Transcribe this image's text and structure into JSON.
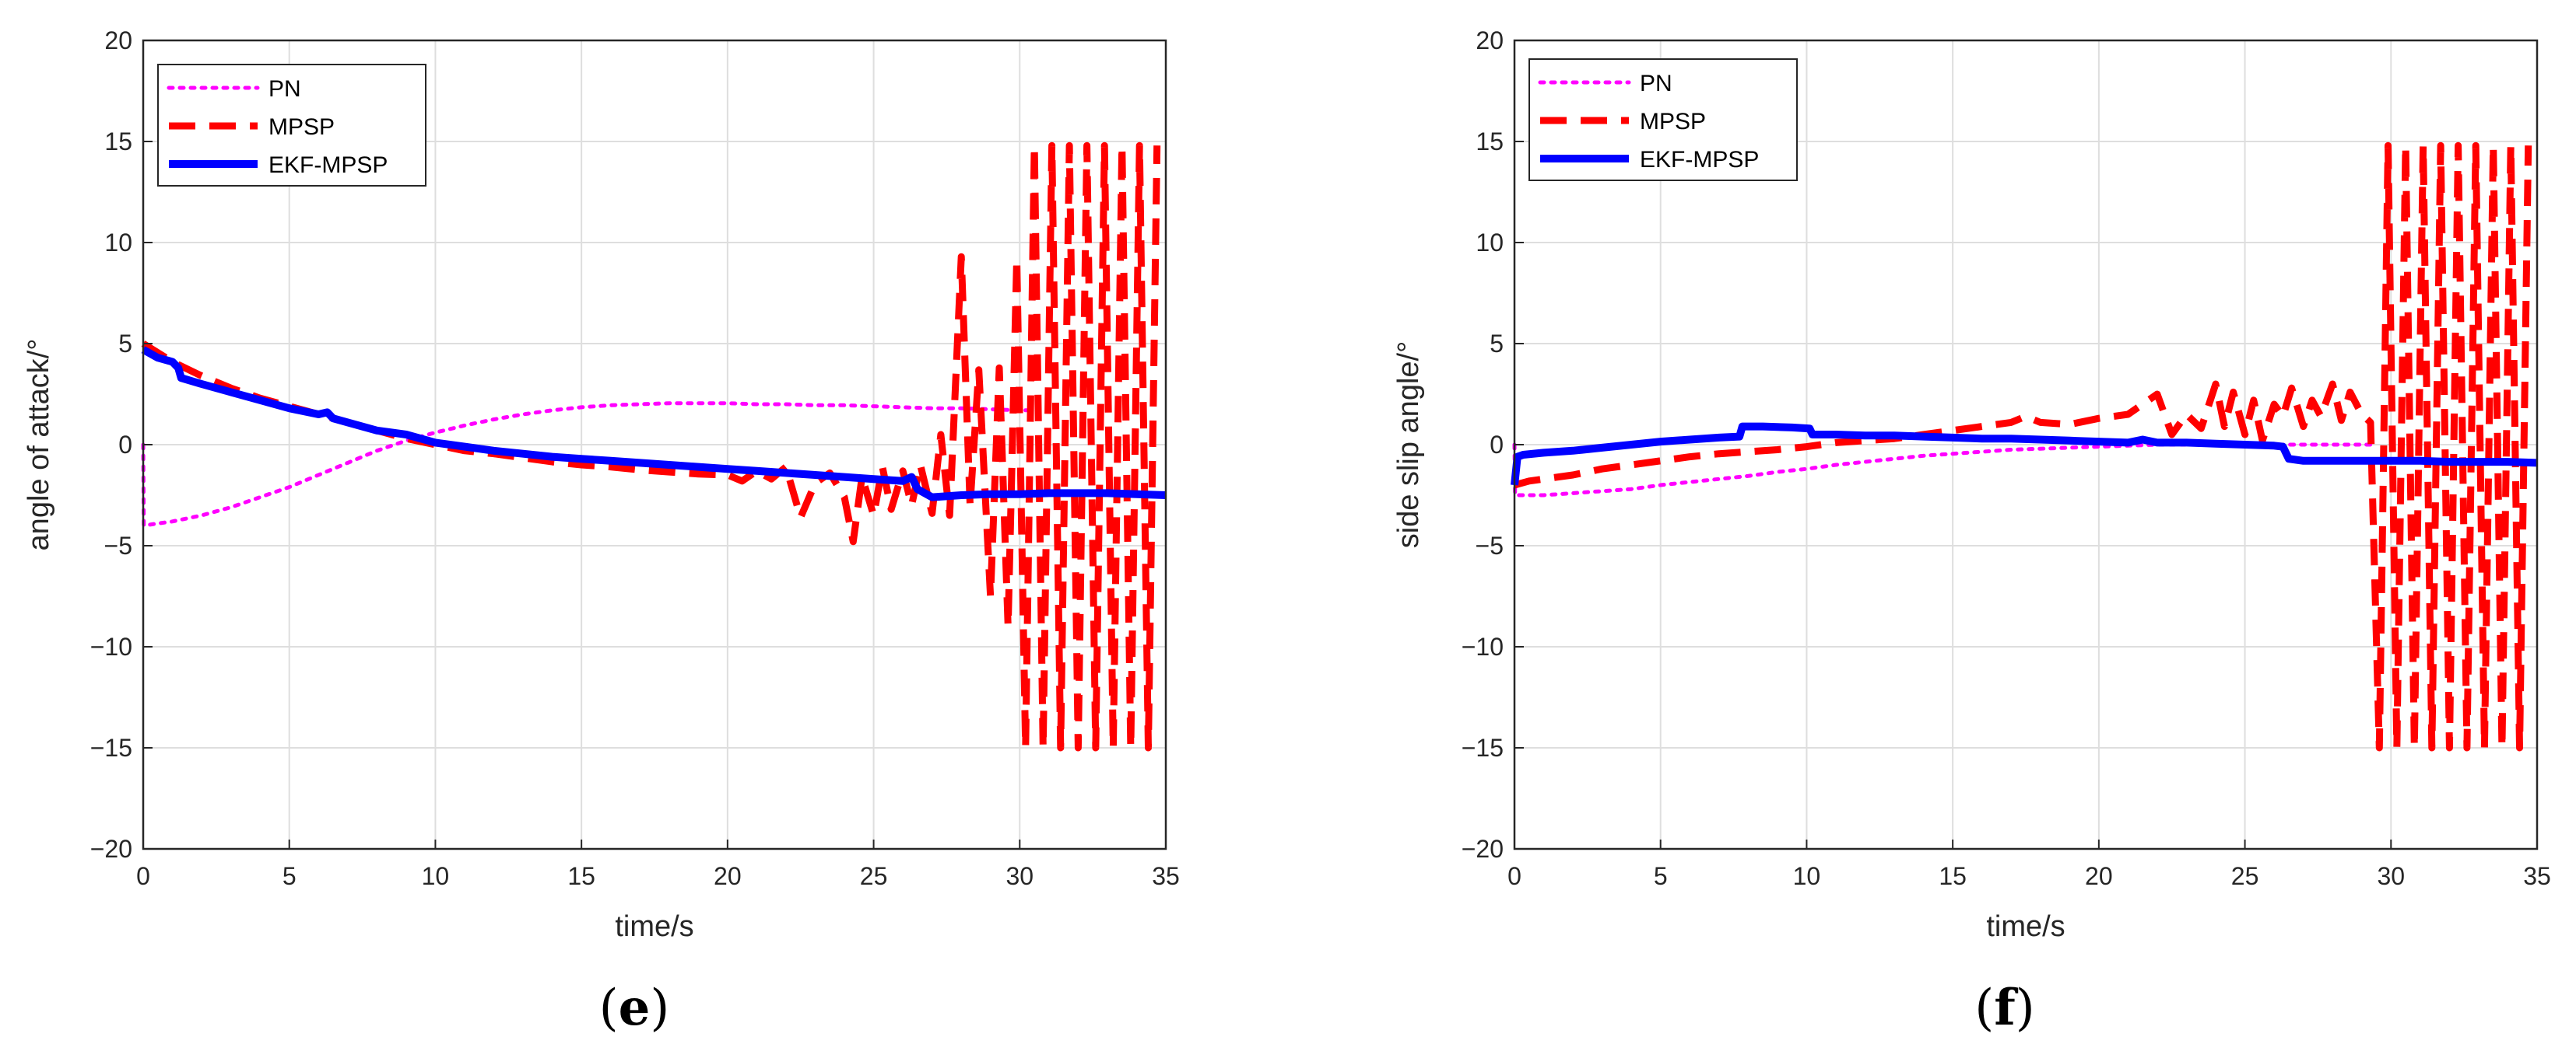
{
  "chart_data": [
    {
      "type": "line",
      "panel_label": "e",
      "xlabel": "time/s",
      "ylabel": "angle of attack/°",
      "xlim": [
        0,
        35
      ],
      "ylim": [
        -20,
        20
      ],
      "xticks": [
        0,
        5,
        10,
        15,
        20,
        25,
        30,
        35
      ],
      "yticks": [
        -20,
        -15,
        -10,
        -5,
        0,
        5,
        10,
        15,
        20
      ],
      "xtick_labels": [
        "0",
        "5",
        "10",
        "15",
        "20",
        "25",
        "30",
        "35"
      ],
      "ytick_labels": [
        "−20",
        "−15",
        "−10",
        "−5",
        "0",
        "5",
        "10",
        "15",
        "20"
      ],
      "grid": true,
      "legend_position": "top-left",
      "series": [
        {
          "name": "PN",
          "color": "#ff00ff",
          "style": "dotted",
          "x": [
            0,
            0.02,
            0.5,
            1,
            2,
            3,
            4,
            5,
            6,
            7,
            8,
            9,
            10,
            11,
            12,
            13,
            14,
            15,
            16,
            17,
            18,
            19,
            20,
            21,
            22,
            23,
            24,
            25,
            26,
            27,
            28,
            29,
            30,
            30.5
          ],
          "y": [
            0,
            -4,
            -3.9,
            -3.8,
            -3.5,
            -3.1,
            -2.6,
            -2.1,
            -1.5,
            -0.9,
            -0.3,
            0.2,
            0.6,
            0.95,
            1.25,
            1.5,
            1.7,
            1.85,
            1.95,
            2.0,
            2.05,
            2.05,
            2.05,
            2.0,
            2.0,
            1.95,
            1.95,
            1.9,
            1.85,
            1.8,
            1.8,
            1.75,
            1.7,
            1.7
          ]
        },
        {
          "name": "MPSP",
          "color": "#ff0000",
          "style": "dashed",
          "x": [
            0,
            1,
            2,
            3,
            4,
            5,
            6,
            7,
            8,
            9,
            10,
            11,
            12,
            13,
            14,
            15,
            16,
            17,
            18,
            19,
            20,
            20.5,
            21,
            21.5,
            22,
            22.5,
            23,
            23.5,
            24,
            24.3,
            24.6,
            25,
            25.3,
            25.6,
            26,
            26.3,
            26.6,
            27,
            27.3,
            27.6,
            28,
            28.3,
            28.6,
            29,
            29.3,
            29.6,
            29.9,
            30.2,
            30.5,
            30.8,
            31.1,
            31.4,
            31.7,
            32,
            32.3,
            32.6,
            32.9,
            33.2,
            33.5,
            33.8,
            34.1,
            34.4,
            34.7
          ],
          "y": [
            5,
            4.1,
            3.4,
            2.8,
            2.3,
            1.9,
            1.5,
            1.1,
            0.7,
            0.3,
            0.0,
            -0.3,
            -0.45,
            -0.65,
            -0.85,
            -1.0,
            -1.1,
            -1.25,
            -1.35,
            -1.45,
            -1.5,
            -1.8,
            -1.3,
            -1.7,
            -1.1,
            -3.6,
            -1.9,
            -1.4,
            -2.6,
            -4.8,
            -1.6,
            -3.5,
            -1.1,
            -3.2,
            -1.3,
            -3.0,
            -1.0,
            -3.4,
            0.5,
            -3.5,
            9.3,
            -3.0,
            3.7,
            -7.5,
            3.8,
            -9.0,
            9.2,
            -15,
            14.8,
            -15,
            14.8,
            -15,
            14.8,
            -15,
            14.8,
            -15,
            14.8,
            -15,
            14.8,
            -15,
            14.8,
            -15,
            14.8
          ]
        },
        {
          "name": "EKF-MPSP",
          "color": "#0000ff",
          "style": "solid",
          "x": [
            0,
            0.5,
            1,
            1.2,
            1.3,
            2,
            3,
            4,
            5,
            6,
            6.3,
            6.5,
            7,
            8,
            9,
            9.5,
            10,
            11,
            12,
            13,
            14,
            15,
            16,
            17,
            18,
            19,
            20,
            21,
            22,
            23,
            24,
            25,
            26,
            26.3,
            26.5,
            27,
            28,
            29,
            30,
            31,
            32,
            33,
            34,
            35
          ],
          "y": [
            4.7,
            4.3,
            4.1,
            3.8,
            3.3,
            3.0,
            2.6,
            2.2,
            1.8,
            1.5,
            1.6,
            1.3,
            1.1,
            0.7,
            0.5,
            0.3,
            0.1,
            -0.1,
            -0.3,
            -0.45,
            -0.6,
            -0.7,
            -0.8,
            -0.9,
            -1.0,
            -1.1,
            -1.2,
            -1.3,
            -1.4,
            -1.5,
            -1.6,
            -1.7,
            -1.8,
            -1.6,
            -2.2,
            -2.6,
            -2.5,
            -2.45,
            -2.45,
            -2.4,
            -2.4,
            -2.4,
            -2.45,
            -2.5
          ]
        }
      ]
    },
    {
      "type": "line",
      "panel_label": "f",
      "xlabel": "time/s",
      "ylabel": "side slip angle/°",
      "xlim": [
        0,
        35
      ],
      "ylim": [
        -20,
        20
      ],
      "xticks": [
        0,
        5,
        10,
        15,
        20,
        25,
        30,
        35
      ],
      "yticks": [
        -20,
        -15,
        -10,
        -5,
        0,
        5,
        10,
        15,
        20
      ],
      "xtick_labels": [
        "0",
        "5",
        "10",
        "15",
        "20",
        "25",
        "30",
        "35"
      ],
      "ytick_labels": [
        "−20",
        "−15",
        "−10",
        "−5",
        "0",
        "5",
        "10",
        "15",
        "20"
      ],
      "grid": true,
      "legend_position": "top-left",
      "series": [
        {
          "name": "PN",
          "color": "#ff00ff",
          "style": "dotted",
          "x": [
            0,
            0.02,
            1,
            2,
            3,
            4,
            5,
            6,
            7,
            8,
            9,
            10,
            11,
            12,
            13,
            14,
            15,
            16,
            17,
            18,
            19,
            20,
            21,
            22,
            23,
            24,
            25,
            26,
            27,
            28,
            29,
            29.5
          ],
          "y": [
            0,
            -2.5,
            -2.5,
            -2.4,
            -2.3,
            -2.2,
            -2.0,
            -1.85,
            -1.7,
            -1.55,
            -1.35,
            -1.2,
            -1.0,
            -0.85,
            -0.7,
            -0.55,
            -0.45,
            -0.35,
            -0.25,
            -0.2,
            -0.15,
            -0.1,
            -0.05,
            0.0,
            0.0,
            0.0,
            0.0,
            0.0,
            0.0,
            0.0,
            0.0,
            0.0
          ]
        },
        {
          "name": "MPSP",
          "color": "#ff0000",
          "style": "dashed",
          "x": [
            0,
            0.5,
            1,
            2,
            3,
            4,
            5,
            6,
            7,
            8,
            9,
            10,
            11,
            12,
            13,
            14,
            15,
            16,
            17,
            17.5,
            18,
            19,
            20,
            21,
            22,
            22.5,
            23,
            23.5,
            24,
            24.3,
            24.6,
            25,
            25.3,
            25.6,
            26,
            26.3,
            26.6,
            27,
            27.3,
            27.6,
            28,
            28.3,
            28.6,
            29,
            29.3,
            29.6,
            29.9,
            30.2,
            30.5,
            30.8,
            31.1,
            31.4,
            31.7,
            32,
            32.3,
            32.6,
            32.9,
            33.2,
            33.5,
            33.8,
            34.1,
            34.4,
            34.7
          ],
          "y": [
            -2.0,
            -1.8,
            -1.7,
            -1.5,
            -1.2,
            -1.0,
            -0.8,
            -0.6,
            -0.45,
            -0.35,
            -0.25,
            -0.1,
            0.1,
            0.2,
            0.3,
            0.5,
            0.7,
            0.9,
            1.1,
            1.4,
            1.1,
            1.0,
            1.3,
            1.5,
            2.5,
            0.5,
            1.5,
            0.8,
            3.0,
            0.9,
            2.6,
            0.5,
            2.2,
            0.2,
            2.0,
            1.4,
            2.8,
            0.9,
            2.2,
            1.4,
            3.0,
            1.2,
            2.6,
            1.5,
            1.1,
            -15,
            14.8,
            -15,
            14.8,
            -15,
            14.8,
            -15,
            14.8,
            -15,
            14.8,
            -15,
            14.8,
            -15,
            14.8,
            -15,
            14.8,
            -15,
            14.8
          ]
        },
        {
          "name": "EKF-MPSP",
          "color": "#0000ff",
          "style": "solid",
          "x": [
            0,
            0.1,
            0.3,
            1,
            2,
            3,
            4,
            5,
            6,
            7,
            7.7,
            7.8,
            8.5,
            9.5,
            10.1,
            10.2,
            11,
            12,
            13,
            14,
            15,
            16,
            17,
            18,
            19,
            20,
            21,
            21.5,
            22,
            23,
            24,
            25,
            26,
            26.3,
            26.5,
            27,
            28,
            29,
            30,
            31,
            32,
            33,
            34,
            35
          ],
          "y": [
            -2.0,
            -0.6,
            -0.5,
            -0.4,
            -0.3,
            -0.15,
            0.0,
            0.15,
            0.25,
            0.35,
            0.4,
            0.9,
            0.9,
            0.85,
            0.8,
            0.5,
            0.5,
            0.45,
            0.45,
            0.4,
            0.35,
            0.3,
            0.3,
            0.25,
            0.2,
            0.15,
            0.1,
            0.25,
            0.1,
            0.1,
            0.05,
            0.0,
            -0.05,
            -0.1,
            -0.7,
            -0.8,
            -0.8,
            -0.8,
            -0.8,
            -0.8,
            -0.85,
            -0.85,
            -0.85,
            -0.9
          ]
        }
      ]
    }
  ]
}
